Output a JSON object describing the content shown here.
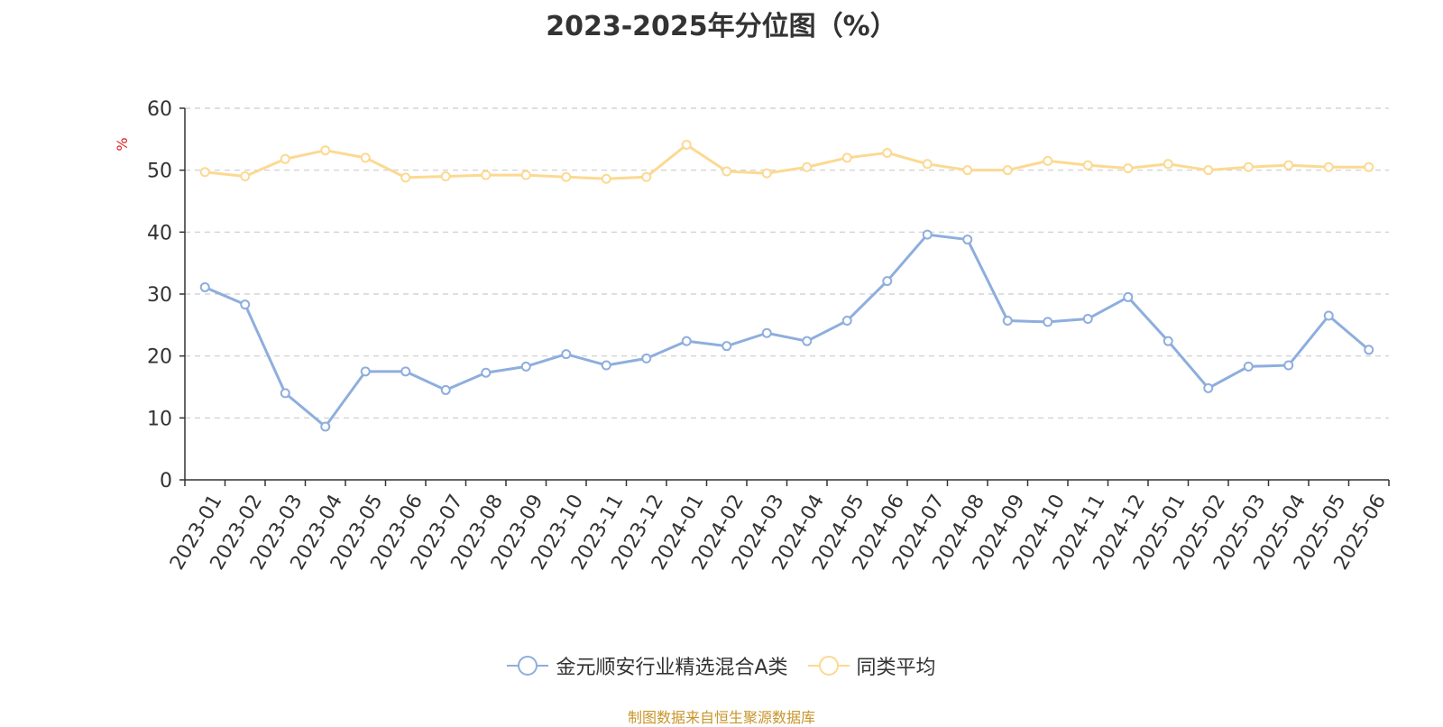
{
  "chart_data": {
    "type": "line",
    "title": "2023-2025年分位图（%）",
    "ylabel": "%",
    "ylim": [
      0,
      60
    ],
    "yticks": [
      0,
      10,
      20,
      30,
      40,
      50,
      60
    ],
    "grid": true,
    "legend_position": "bottom",
    "categories": [
      "2023-01",
      "2023-02",
      "2023-03",
      "2023-04",
      "2023-05",
      "2023-06",
      "2023-07",
      "2023-08",
      "2023-09",
      "2023-10",
      "2023-11",
      "2023-12",
      "2024-01",
      "2024-02",
      "2024-03",
      "2024-04",
      "2024-05",
      "2024-06",
      "2024-07",
      "2024-08",
      "2024-09",
      "2024-10",
      "2024-11",
      "2024-12",
      "2025-01",
      "2025-02",
      "2025-03",
      "2025-04",
      "2025-05",
      "2025-06"
    ],
    "series": [
      {
        "name": "金元顺安行业精选混合A类",
        "color": "#8eaedd",
        "values": [
          31.1,
          28.3,
          14.0,
          8.6,
          17.5,
          17.5,
          14.5,
          17.3,
          18.3,
          20.3,
          18.5,
          19.6,
          22.4,
          21.6,
          23.7,
          22.4,
          25.7,
          32.1,
          39.6,
          38.8,
          25.7,
          25.5,
          26.0,
          29.5,
          22.4,
          14.8,
          18.3,
          18.5,
          26.5,
          21.0
        ]
      },
      {
        "name": "同类平均",
        "color": "#fcd992",
        "values": [
          49.7,
          49.0,
          51.8,
          53.2,
          52.0,
          48.8,
          49.0,
          49.2,
          49.2,
          48.9,
          48.6,
          48.9,
          54.1,
          49.8,
          49.5,
          50.5,
          52.0,
          52.8,
          51.0,
          50.0,
          50.0,
          51.5,
          50.8,
          50.3,
          51.0,
          50.0,
          50.5,
          50.8,
          50.5,
          50.5
        ]
      }
    ]
  },
  "footer": {
    "source": "制图数据来自恒生聚源数据库"
  }
}
